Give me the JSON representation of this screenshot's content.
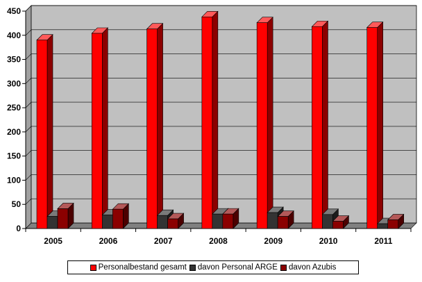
{
  "chart_data": {
    "type": "bar",
    "categories": [
      "2005",
      "2006",
      "2007",
      "2008",
      "2009",
      "2010",
      "2011"
    ],
    "series": [
      {
        "name": "Personalbestand gesamt",
        "color": "#ff0000",
        "values": [
          390,
          404,
          413,
          438,
          426,
          418,
          416
        ]
      },
      {
        "name": "davon Personal ARGE",
        "color": "#333333",
        "values": [
          25,
          28,
          27,
          30,
          33,
          29,
          10
        ]
      },
      {
        "name": "davon Azubis",
        "color": "#8b0000",
        "values": [
          41,
          40,
          20,
          30,
          25,
          15,
          18
        ]
      }
    ],
    "y_ticks": [
      "0",
      "50",
      "100",
      "150",
      "200",
      "250",
      "300",
      "350",
      "400",
      "450"
    ],
    "ylim": [
      0,
      450
    ],
    "grid": true,
    "legend_position": "bottom",
    "plot_background": "#c0c0c0"
  }
}
